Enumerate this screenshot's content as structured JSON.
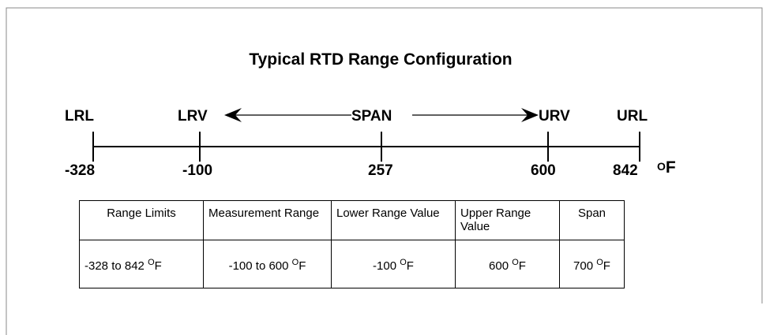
{
  "title": "Typical RTD Range Configuration",
  "markers": [
    {
      "label": "LRL",
      "value": "-328"
    },
    {
      "label": "LRV",
      "value": "-100"
    },
    {
      "label": "SPAN",
      "value": "257"
    },
    {
      "label": "URV",
      "value": "600"
    },
    {
      "label": "URL",
      "value": "842"
    }
  ],
  "axis_unit": {
    "sup": "O",
    "unit": "F"
  },
  "table": {
    "header": [
      "Range Limits",
      "Measurement Range",
      "Lower Range Value",
      "Upper Range Value",
      "Span"
    ],
    "row": [
      {
        "text": "-328 to 842",
        "sup": "O",
        "unit": "F"
      },
      {
        "text": "-100 to 600",
        "sup": "O",
        "unit": "F"
      },
      {
        "text": "-100",
        "sup": "O",
        "unit": "F"
      },
      {
        "text": "600",
        "sup": "O",
        "unit": "F"
      },
      {
        "text": "700",
        "sup": "O",
        "unit": "F"
      }
    ]
  }
}
